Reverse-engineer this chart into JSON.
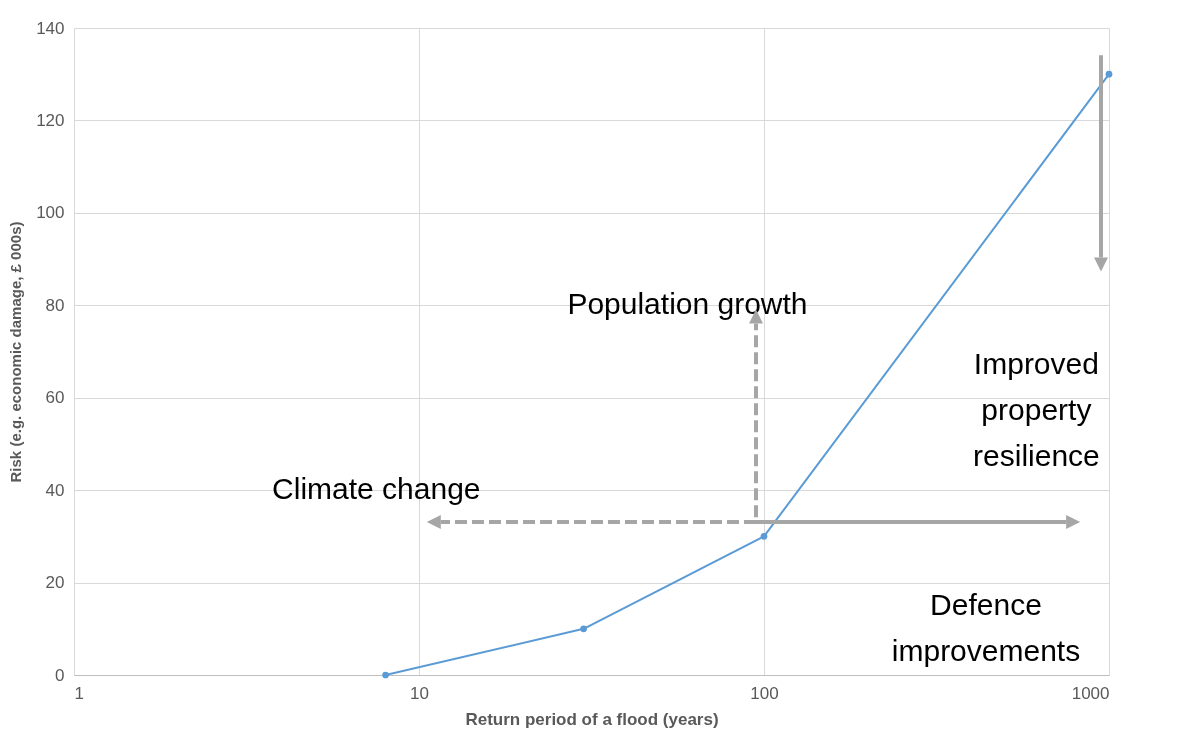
{
  "chart_data": {
    "type": "line",
    "xlabel": "Return period of a flood (years)",
    "ylabel": "Risk (e.g. economic damage, £ 000s)",
    "x": [
      8,
      30,
      100,
      1000
    ],
    "series": [
      {
        "color": "#5b9bd5",
        "values": [
          0,
          10,
          30,
          130
        ]
      }
    ],
    "log": "x",
    "xlim": [
      1,
      1000
    ],
    "xticks": [
      1,
      10,
      100,
      1000
    ],
    "ylim": [
      0,
      140
    ],
    "yticks": [
      0,
      20,
      40,
      60,
      80,
      100,
      120,
      140
    ],
    "grid": true,
    "marker": "circle",
    "line_style": "solid",
    "annotations": [
      "Climate change",
      "Population growth",
      "Improved\nproperty\nresilience",
      "Defence\nimprovements"
    ]
  }
}
